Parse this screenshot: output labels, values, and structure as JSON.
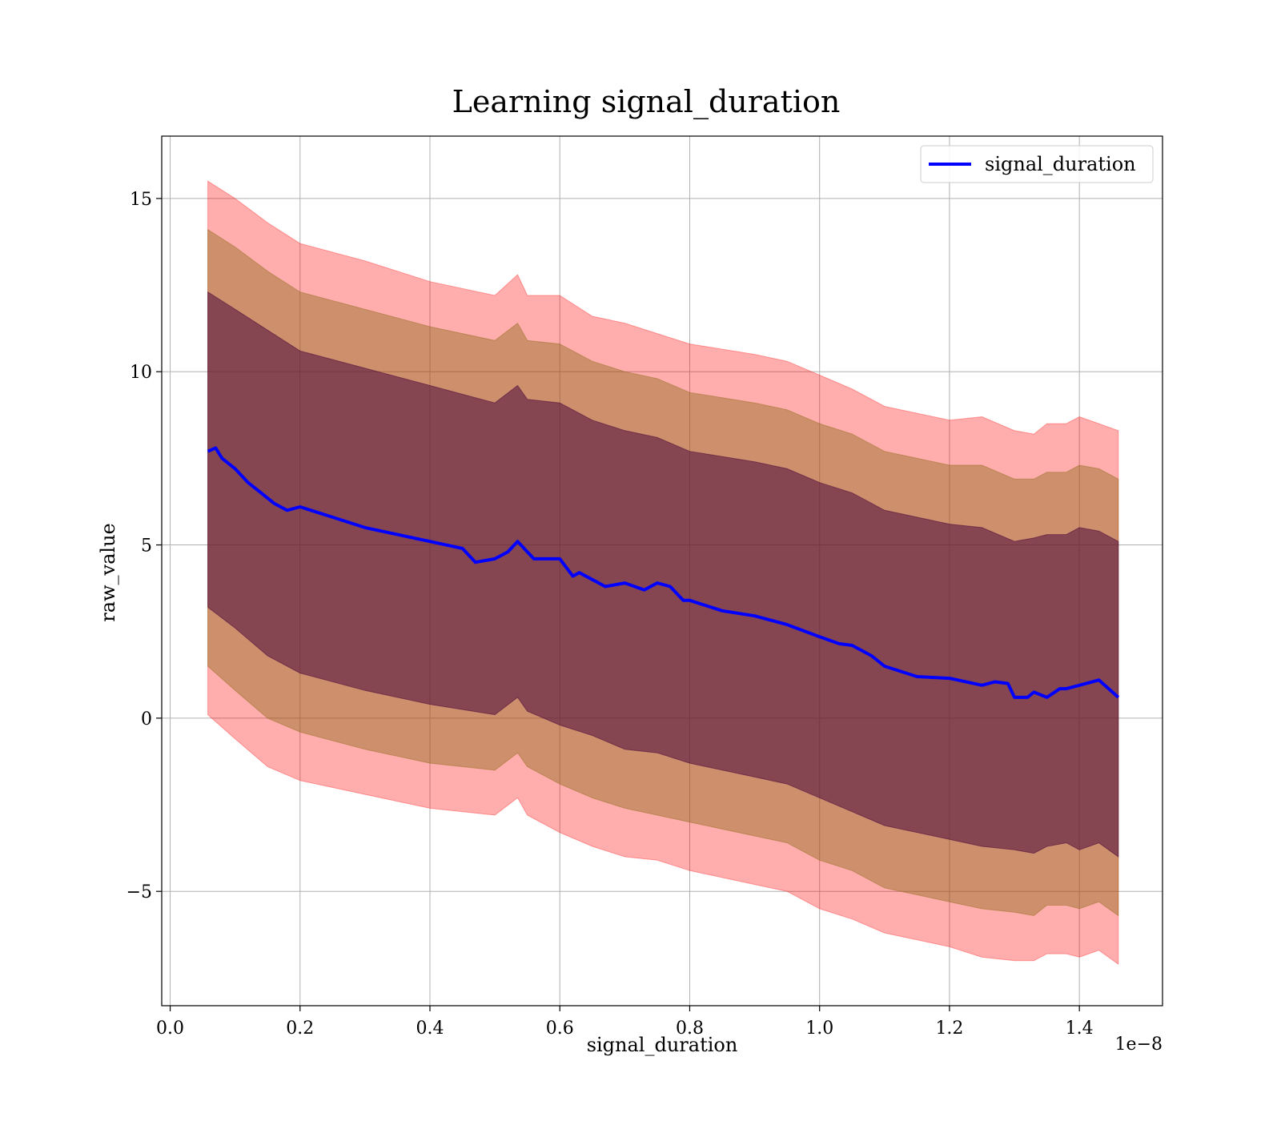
{
  "chart_data": {
    "type": "area",
    "title": "Learning signal_duration",
    "xlabel": "signal_duration",
    "ylabel": "raw_value",
    "x_offset_label": "1e−8",
    "x_scale": 1e-08,
    "xlim": [
      -0.013,
      1.528
    ],
    "ylim": [
      -8.3,
      16.8
    ],
    "grid": true,
    "legend_position": "top-right",
    "x_ticks": [
      0.0,
      0.2,
      0.4,
      0.6,
      0.8,
      1.0,
      1.2,
      1.4
    ],
    "x_tick_labels": [
      "0.0",
      "0.2",
      "0.4",
      "0.6",
      "0.8",
      "1.0",
      "1.2",
      "1.4"
    ],
    "y_ticks": [
      -5,
      0,
      5,
      10,
      15
    ],
    "y_tick_labels": [
      "−5",
      "0",
      "5",
      "10",
      "15"
    ],
    "series": [
      {
        "name": "signal_duration",
        "color": "#0000ff",
        "x": [
          0.058,
          0.07,
          0.08,
          0.1,
          0.12,
          0.14,
          0.16,
          0.18,
          0.2,
          0.25,
          0.3,
          0.35,
          0.4,
          0.45,
          0.47,
          0.5,
          0.52,
          0.535,
          0.56,
          0.6,
          0.62,
          0.63,
          0.65,
          0.67,
          0.7,
          0.73,
          0.75,
          0.77,
          0.79,
          0.8,
          0.85,
          0.9,
          0.95,
          1.0,
          1.03,
          1.05,
          1.08,
          1.1,
          1.15,
          1.2,
          1.25,
          1.27,
          1.29,
          1.3,
          1.32,
          1.33,
          1.35,
          1.37,
          1.38,
          1.4,
          1.43,
          1.46
        ],
        "y": [
          7.7,
          7.8,
          7.5,
          7.2,
          6.8,
          6.5,
          6.2,
          6.0,
          6.1,
          5.8,
          5.5,
          5.3,
          5.1,
          4.9,
          4.5,
          4.6,
          4.8,
          5.1,
          4.6,
          4.6,
          4.1,
          4.2,
          4.0,
          3.8,
          3.9,
          3.7,
          3.9,
          3.8,
          3.4,
          3.4,
          3.1,
          2.95,
          2.7,
          2.35,
          2.15,
          2.1,
          1.8,
          1.5,
          1.2,
          1.15,
          0.95,
          1.05,
          1.0,
          0.6,
          0.6,
          0.75,
          0.6,
          0.85,
          0.85,
          0.95,
          1.1,
          0.6
        ]
      }
    ],
    "bands": [
      {
        "color": "#ff0000",
        "opacity": 0.32,
        "x": [
          0.058,
          0.1,
          0.15,
          0.2,
          0.3,
          0.4,
          0.5,
          0.535,
          0.55,
          0.6,
          0.65,
          0.7,
          0.75,
          0.8,
          0.9,
          0.95,
          1.0,
          1.05,
          1.1,
          1.2,
          1.25,
          1.3,
          1.33,
          1.35,
          1.38,
          1.4,
          1.43,
          1.46
        ],
        "upper": [
          15.5,
          15.0,
          14.3,
          13.7,
          13.2,
          12.6,
          12.2,
          12.8,
          12.2,
          12.2,
          11.6,
          11.4,
          11.1,
          10.8,
          10.5,
          10.3,
          9.9,
          9.5,
          9.0,
          8.6,
          8.7,
          8.3,
          8.2,
          8.5,
          8.5,
          8.7,
          8.5,
          8.3
        ],
        "lower": [
          0.1,
          -0.6,
          -1.4,
          -1.8,
          -2.2,
          -2.6,
          -2.8,
          -2.3,
          -2.8,
          -3.3,
          -3.7,
          -4.0,
          -4.1,
          -4.4,
          -4.8,
          -5.0,
          -5.5,
          -5.8,
          -6.2,
          -6.6,
          -6.9,
          -7.0,
          -7.0,
          -6.8,
          -6.8,
          -6.9,
          -6.7,
          -7.1
        ]
      },
      {
        "color": "#8b6914",
        "opacity": 0.42,
        "x": [
          0.058,
          0.1,
          0.15,
          0.2,
          0.3,
          0.4,
          0.5,
          0.535,
          0.55,
          0.6,
          0.65,
          0.7,
          0.75,
          0.8,
          0.9,
          0.95,
          1.0,
          1.05,
          1.1,
          1.2,
          1.25,
          1.3,
          1.33,
          1.35,
          1.38,
          1.4,
          1.43,
          1.46
        ],
        "upper": [
          14.1,
          13.6,
          12.9,
          12.3,
          11.8,
          11.3,
          10.9,
          11.4,
          10.9,
          10.8,
          10.3,
          10.0,
          9.8,
          9.4,
          9.1,
          8.9,
          8.5,
          8.2,
          7.7,
          7.3,
          7.3,
          6.9,
          6.9,
          7.1,
          7.1,
          7.3,
          7.2,
          6.9
        ],
        "lower": [
          1.5,
          0.8,
          0.0,
          -0.4,
          -0.9,
          -1.3,
          -1.5,
          -1.0,
          -1.4,
          -1.9,
          -2.3,
          -2.6,
          -2.8,
          -3.0,
          -3.4,
          -3.6,
          -4.1,
          -4.4,
          -4.9,
          -5.3,
          -5.5,
          -5.6,
          -5.7,
          -5.4,
          -5.4,
          -5.5,
          -5.3,
          -5.7
        ]
      },
      {
        "color": "#4b0a3c",
        "opacity": 0.55,
        "x": [
          0.058,
          0.1,
          0.15,
          0.2,
          0.3,
          0.4,
          0.5,
          0.535,
          0.55,
          0.6,
          0.65,
          0.7,
          0.75,
          0.8,
          0.9,
          0.95,
          1.0,
          1.05,
          1.1,
          1.2,
          1.25,
          1.3,
          1.33,
          1.35,
          1.38,
          1.4,
          1.43,
          1.46
        ],
        "upper": [
          12.3,
          11.8,
          11.2,
          10.6,
          10.1,
          9.6,
          9.1,
          9.6,
          9.2,
          9.1,
          8.6,
          8.3,
          8.1,
          7.7,
          7.4,
          7.2,
          6.8,
          6.5,
          6.0,
          5.6,
          5.5,
          5.1,
          5.2,
          5.3,
          5.3,
          5.5,
          5.4,
          5.1
        ],
        "lower": [
          3.2,
          2.6,
          1.8,
          1.3,
          0.8,
          0.4,
          0.1,
          0.6,
          0.2,
          -0.2,
          -0.5,
          -0.9,
          -1.0,
          -1.3,
          -1.7,
          -1.9,
          -2.3,
          -2.7,
          -3.1,
          -3.5,
          -3.7,
          -3.8,
          -3.9,
          -3.7,
          -3.6,
          -3.8,
          -3.6,
          -4.0
        ]
      }
    ]
  }
}
